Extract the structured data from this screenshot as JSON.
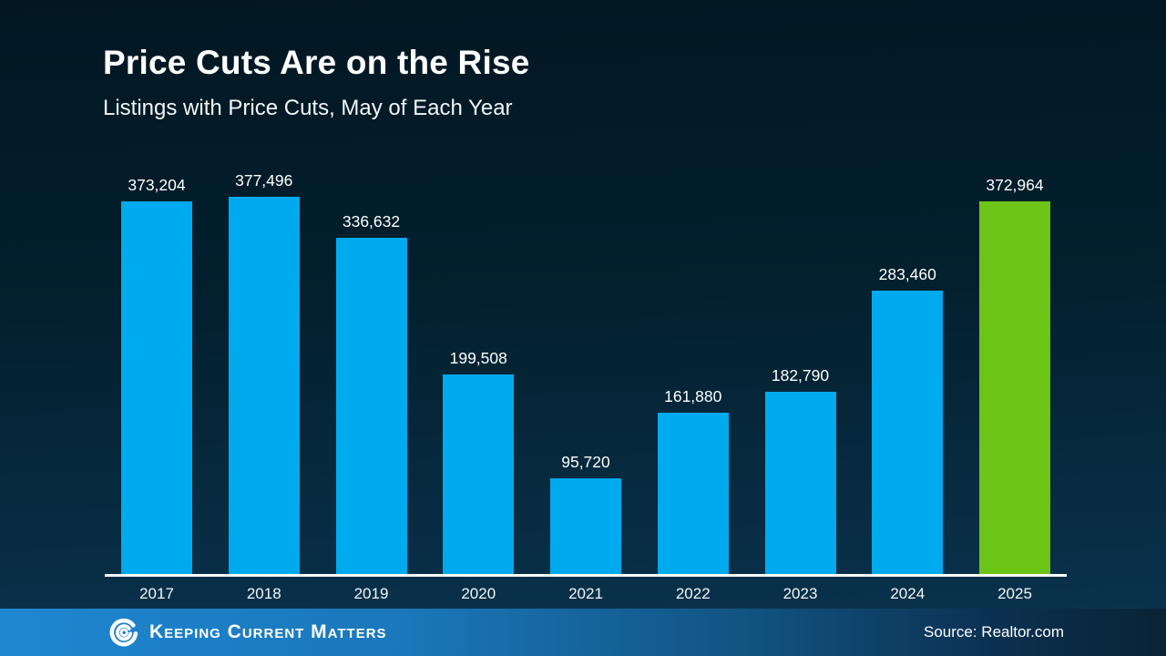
{
  "slide": {
    "title": "Price Cuts Are on the Rise",
    "subtitle": "Listings with Price Cuts, May of Each Year"
  },
  "chart_data": {
    "type": "bar",
    "title": "Price Cuts Are on the Rise",
    "subtitle": "Listings with Price Cuts, May of Each Year",
    "categories": [
      "2017",
      "2018",
      "2019",
      "2020",
      "2021",
      "2022",
      "2023",
      "2024",
      "2025"
    ],
    "values": [
      373204,
      377496,
      336632,
      199508,
      95720,
      161880,
      182790,
      283460,
      372964
    ],
    "value_labels": [
      "373,204",
      "377,496",
      "336,632",
      "199,508",
      "95,720",
      "161,880",
      "182,790",
      "283,460",
      "372,964"
    ],
    "bar_color": "#00aaee",
    "highlight_color": "#6cc417",
    "highlight_index": 8,
    "ylim": [
      0,
      377496
    ],
    "grid": false,
    "legend": "none",
    "value_labels_position": "above-bars",
    "axis_line_color": "#ffffff"
  },
  "footer": {
    "brand": "Keeping Current Matters",
    "source": "Source: Realtor.com"
  }
}
